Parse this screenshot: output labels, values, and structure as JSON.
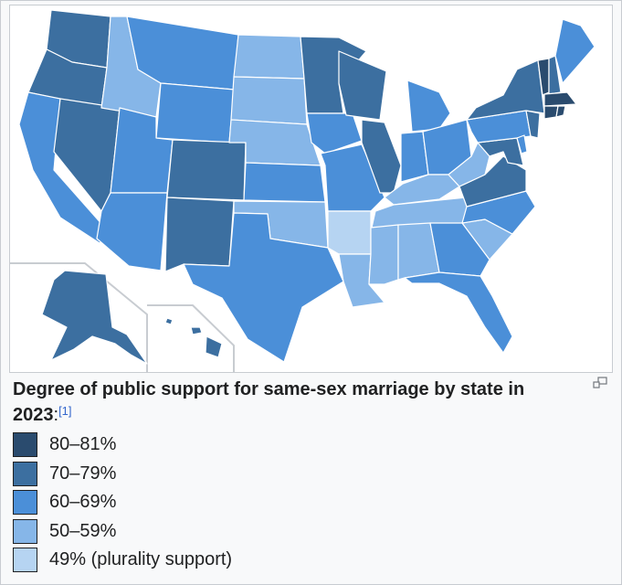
{
  "caption": {
    "title": "Degree of public support for same-sex marriage by state in 2023",
    "separator": ":",
    "reference": "[1]"
  },
  "icons": {
    "enlarge": "enlarge-icon"
  },
  "colors": {
    "tier_80_81": "#2a4b6e",
    "tier_70_79": "#3c6fa0",
    "tier_60_69": "#4b8fd8",
    "tier_50_59": "#86b6e8",
    "tier_49": "#b6d4f2",
    "borders": "#ffffff",
    "inset_lines": "#c8ccd1"
  },
  "legend": [
    {
      "label": "80–81%",
      "color": "#2a4b6e"
    },
    {
      "label": "70–79%",
      "color": "#3c6fa0"
    },
    {
      "label": "60–69%",
      "color": "#4b8fd8"
    },
    {
      "label": "50–59%",
      "color": "#86b6e8"
    },
    {
      "label": "49% (plurality support)",
      "color": "#b6d4f2"
    }
  ]
}
